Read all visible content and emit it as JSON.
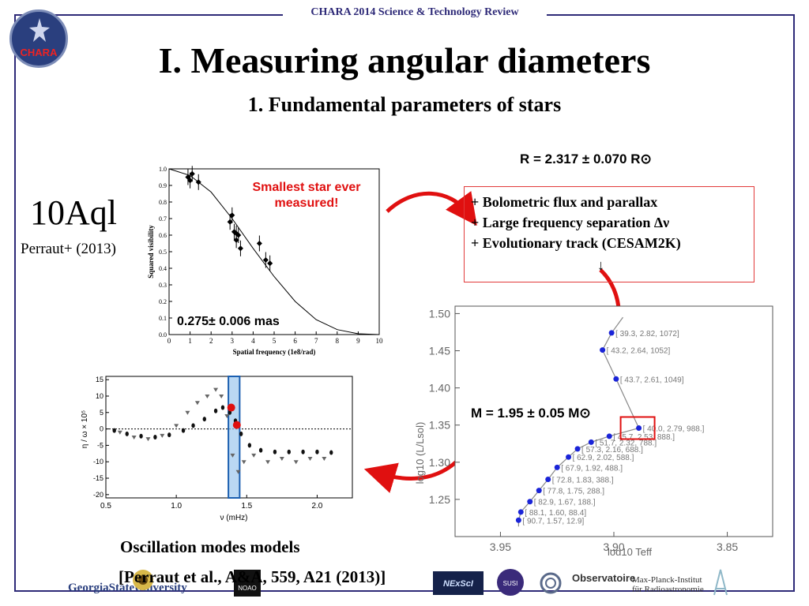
{
  "header": {
    "title": "CHARA 2014 Science & Technology Review",
    "logo_text": "CHARA"
  },
  "slide": {
    "title": "I. Measuring angular diameters",
    "subtitle": "1. Fundamental parameters of stars"
  },
  "star": {
    "name": "10Aql",
    "citation": "Perraut+ (2013)"
  },
  "visibility_plot": {
    "annotation": "Smallest star ever measured!",
    "diameter": "0.275± 0.006 mas",
    "xlabel": "Spatial frequency (1e8/rad)",
    "ylabel": "Squared visibility"
  },
  "radius": {
    "text": "R =  2.317 ± 0.070 R⊙"
  },
  "constraints": {
    "items": [
      "+ Bolometric flux and parallax",
      "+ Large frequency separation Δν",
      "+ Evolutionary track (CESAM2K)"
    ],
    "arrow": "↓"
  },
  "hr_diagram": {
    "xlabel": "log10 Teff",
    "ylabel": "log10 (L/Lsol)",
    "labels": [
      "[ 39.3, 2.82, 1072]",
      "[ 43.2, 2.64, 1052]",
      "[ 43.7, 2.61, 1049]",
      "[ 40.0, 2.79, 988.]",
      "[ 45.7, 2.53, 888.]",
      "[ 51.7, 2.32, 788.]",
      "[ 57.3, 2.16, 688.]",
      "[ 62.9, 2.02, 588.]",
      "[ 67.9, 1.92, 488.]",
      "[ 72.8, 1.83, 388.]",
      "[ 77.8, 1.75, 288.]",
      "[ 82.9, 1.67, 188.]",
      "[ 88.1, 1.60, 88.4]",
      "[ 90.7, 1.57, 12.9]"
    ]
  },
  "mass": {
    "text": "M =  1.95 ± 0.05 M⊙"
  },
  "oscillation": {
    "caption": "Oscillation modes models",
    "xlabel": "ν (mHz)"
  },
  "reference": "[Perraut et al., A&A, 559, A21 (2013)]",
  "logos": {
    "gsu": "GeorgiaStateUniversity",
    "obs": "Observatoire",
    "mpi_line1": "Max-Planck-Institut",
    "mpi_line2": "für Radioastronomie",
    "noao": "NOAO",
    "nexsci": "NExScI",
    "susi": "SUSI"
  },
  "chart_data": [
    {
      "type": "scatter",
      "xlabel": "Spatial frequency (1e8/rad)",
      "ylabel": "Squared visibility",
      "xlim": [
        0,
        10
      ],
      "ylim": [
        0.0,
        1.0
      ],
      "x_ticks": [
        0,
        1,
        2,
        3,
        4,
        5,
        6,
        7,
        8,
        9,
        10
      ],
      "y_ticks": [
        "0.0",
        "0.1",
        "0.2",
        "0.3",
        "0.4",
        "0.5",
        "0.6",
        "0.7",
        "0.8",
        "0.9",
        "1.0"
      ],
      "points": [
        [
          0.9,
          0.95
        ],
        [
          1.0,
          0.93
        ],
        [
          1.1,
          0.97
        ],
        [
          1.4,
          0.92
        ],
        [
          2.9,
          0.68
        ],
        [
          3.0,
          0.72
        ],
        [
          3.1,
          0.62
        ],
        [
          3.2,
          0.61
        ],
        [
          3.3,
          0.6
        ],
        [
          3.2,
          0.57
        ],
        [
          3.4,
          0.52
        ],
        [
          4.3,
          0.55
        ],
        [
          4.6,
          0.45
        ],
        [
          4.8,
          0.43
        ]
      ],
      "model_curve": [
        [
          0,
          1.0
        ],
        [
          1,
          0.96
        ],
        [
          2,
          0.86
        ],
        [
          3,
          0.7
        ],
        [
          4,
          0.52
        ],
        [
          5,
          0.35
        ],
        [
          6,
          0.2
        ],
        [
          7,
          0.09
        ],
        [
          8,
          0.03
        ],
        [
          9,
          0.005
        ],
        [
          10,
          0.0
        ]
      ]
    },
    {
      "type": "line",
      "xlabel": "log10 Teff",
      "ylabel": "log10 (L/Lsol)",
      "xlim": [
        3.97,
        3.83
      ],
      "ylim": [
        1.2,
        1.51
      ],
      "x_ticks": [
        "3.95",
        "3.90",
        "3.85"
      ],
      "y_ticks": [
        "1.25",
        "1.30",
        "1.35",
        "1.40",
        "1.45",
        "1.50"
      ],
      "points": [
        [
          3.942,
          1.222
        ],
        [
          3.941,
          1.233
        ],
        [
          3.937,
          1.247
        ],
        [
          3.933,
          1.262
        ],
        [
          3.929,
          1.277
        ],
        [
          3.925,
          1.293
        ],
        [
          3.92,
          1.307
        ],
        [
          3.916,
          1.318
        ],
        [
          3.91,
          1.327
        ],
        [
          3.902,
          1.335
        ],
        [
          3.889,
          1.346
        ],
        [
          3.899,
          1.412
        ],
        [
          3.905,
          1.451
        ],
        [
          3.901,
          1.474
        ]
      ]
    },
    {
      "type": "scatter",
      "xlabel": "ν (mHz)",
      "ylabel": "η / ω × 10⁵",
      "xlim": [
        0.5,
        2.25
      ],
      "ylim": [
        -21,
        16
      ],
      "x_ticks": [
        "0.5",
        "1.0",
        "1.5",
        "2.0"
      ],
      "y_ticks": [
        "15",
        "10",
        "5",
        "0",
        "-5",
        "-10",
        "-15",
        "-20"
      ],
      "filled_points": [
        [
          0.56,
          -0.5
        ],
        [
          0.65,
          -1.5
        ],
        [
          0.75,
          -2.2
        ],
        [
          0.85,
          -2.5
        ],
        [
          0.95,
          -1.8
        ],
        [
          1.05,
          -0.5
        ],
        [
          1.12,
          1
        ],
        [
          1.2,
          3
        ],
        [
          1.28,
          5.5
        ],
        [
          1.33,
          6.5
        ],
        [
          1.38,
          5
        ],
        [
          1.42,
          2.5
        ],
        [
          1.46,
          -1.5
        ],
        [
          1.52,
          -5
        ],
        [
          1.6,
          -6.5
        ],
        [
          1.7,
          -7
        ],
        [
          1.8,
          -7
        ],
        [
          1.9,
          -7
        ],
        [
          2.0,
          -7
        ],
        [
          2.1,
          -7.2
        ]
      ],
      "open_points": [
        [
          0.6,
          -1
        ],
        [
          0.7,
          -2.5
        ],
        [
          0.8,
          -3
        ],
        [
          0.9,
          -2
        ],
        [
          1.0,
          1
        ],
        [
          1.08,
          5
        ],
        [
          1.15,
          8
        ],
        [
          1.22,
          10
        ],
        [
          1.28,
          12
        ],
        [
          1.32,
          10
        ],
        [
          1.36,
          4
        ],
        [
          1.4,
          -8
        ],
        [
          1.44,
          -13
        ],
        [
          1.48,
          -10
        ],
        [
          1.55,
          -8
        ],
        [
          1.65,
          -10
        ],
        [
          1.75,
          -9
        ],
        [
          1.85,
          -10
        ],
        [
          1.95,
          -9
        ],
        [
          2.05,
          -9
        ]
      ],
      "highlight_band": [
        1.37,
        1.45
      ]
    }
  ],
  "colors": {
    "accent": "#2e2a78",
    "red": "#e01010",
    "blue_point": "#1a24d8"
  }
}
